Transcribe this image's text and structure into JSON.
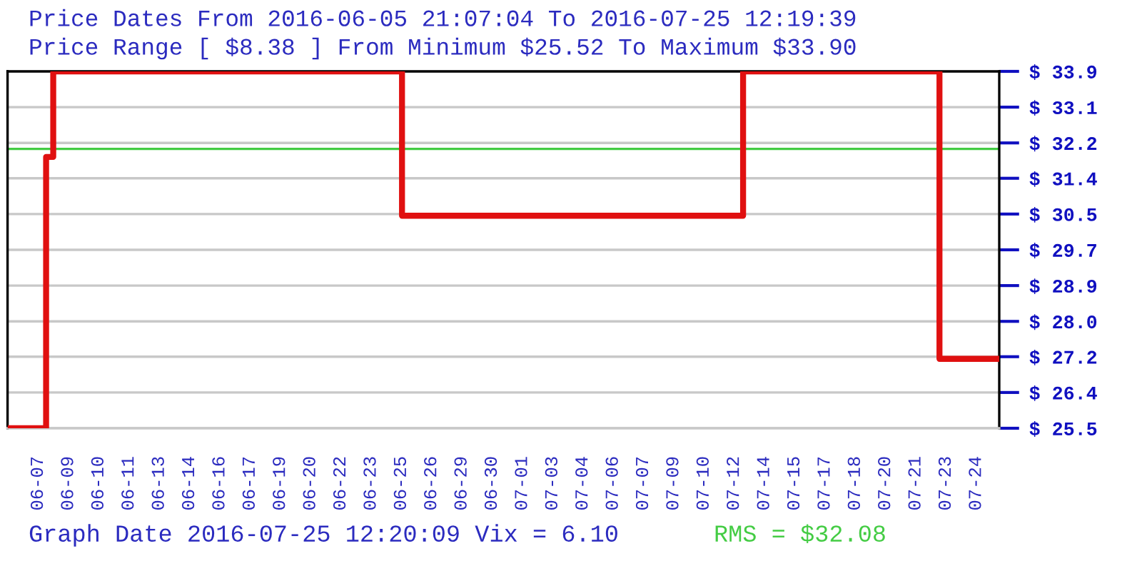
{
  "chart_data": {
    "type": "step",
    "title": "Price Dates From 2016-06-05 21:07:04 To 2016-07-25 12:19:39",
    "subtitle": "Price Range [ $8.38 ] From Minimum $25.52 To Maximum $33.90",
    "annotations": [
      "Graph Date 2016-07-25 12:20:09 Vix = 6.10"
    ],
    "x": [
      "2016-06-05T21:07",
      "2016-06-07T19:24",
      "2016-06-08T03:58",
      "2016-06-25T14:55",
      "2016-07-12T16:37",
      "2016-07-22T12:31",
      "2016-07-25T12:19"
    ],
    "series": [
      {
        "color": "#e01010",
        "values": [
          25.52,
          31.89,
          33.9,
          30.51,
          33.9,
          27.15,
          27.15
        ]
      }
    ],
    "xlim": [
      "2016-06-05T21:07",
      "2016-07-25T12:19"
    ],
    "xticks": [
      {
        "value": "2016-06-07T09:49",
        "label": "06-07"
      },
      {
        "value": "2016-06-08T22:10",
        "label": "06-09"
      },
      {
        "value": "2016-06-10T10:31",
        "label": "06-10"
      },
      {
        "value": "2016-06-11T22:52",
        "label": "06-11"
      },
      {
        "value": "2016-06-13T11:13",
        "label": "06-13"
      },
      {
        "value": "2016-06-14T23:34",
        "label": "06-14"
      },
      {
        "value": "2016-06-16T11:55",
        "label": "06-16"
      },
      {
        "value": "2016-06-18T00:16",
        "label": "06-17"
      },
      {
        "value": "2016-06-19T12:37",
        "label": "06-19"
      },
      {
        "value": "2016-06-21T00:58",
        "label": "06-20"
      },
      {
        "value": "2016-06-22T13:19",
        "label": "06-22"
      },
      {
        "value": "2016-06-24T01:40",
        "label": "06-23"
      },
      {
        "value": "2016-06-25T14:01",
        "label": "06-25"
      },
      {
        "value": "2016-06-27T02:22",
        "label": "06-26"
      },
      {
        "value": "2016-06-28T14:43",
        "label": "06-29"
      },
      {
        "value": "2016-06-30T03:04",
        "label": "06-30"
      },
      {
        "value": "2016-07-01T15:25",
        "label": "07-01"
      },
      {
        "value": "2016-07-03T03:46",
        "label": "07-03"
      },
      {
        "value": "2016-07-04T16:07",
        "label": "07-04"
      },
      {
        "value": "2016-07-06T04:28",
        "label": "07-06"
      },
      {
        "value": "2016-07-07T16:49",
        "label": "07-07"
      },
      {
        "value": "2016-07-09T05:10",
        "label": "07-09"
      },
      {
        "value": "2016-07-10T17:31",
        "label": "07-10"
      },
      {
        "value": "2016-07-12T05:52",
        "label": "07-12"
      },
      {
        "value": "2016-07-13T18:13",
        "label": "07-14"
      },
      {
        "value": "2016-07-15T06:34",
        "label": "07-15"
      },
      {
        "value": "2016-07-16T18:55",
        "label": "07-17"
      },
      {
        "value": "2016-07-18T07:16",
        "label": "07-18"
      },
      {
        "value": "2016-07-19T19:37",
        "label": "07-20"
      },
      {
        "value": "2016-07-21T07:58",
        "label": "07-21"
      },
      {
        "value": "2016-07-22T20:19",
        "label": "07-23"
      },
      {
        "value": "2016-07-24T08:40",
        "label": "07-24"
      }
    ],
    "ylim": [
      25.52,
      33.9
    ],
    "yticks": [
      {
        "value": 25.52,
        "label": "$ 25.5"
      },
      {
        "value": 26.36,
        "label": "$ 26.4"
      },
      {
        "value": 27.2,
        "label": "$ 27.2"
      },
      {
        "value": 28.03,
        "label": "$ 28.0"
      },
      {
        "value": 28.87,
        "label": "$ 28.9"
      },
      {
        "value": 29.71,
        "label": "$ 29.7"
      },
      {
        "value": 30.55,
        "label": "$ 30.5"
      },
      {
        "value": 31.39,
        "label": "$ 31.4"
      },
      {
        "value": 32.22,
        "label": "$ 32.2"
      },
      {
        "value": 33.06,
        "label": "$ 33.1"
      },
      {
        "value": 33.9,
        "label": "$ 33.9"
      }
    ],
    "ref_lines": [
      {
        "axis": "y",
        "value": 32.08,
        "label": "RMS = $32.08",
        "color": "#44cc44"
      }
    ],
    "grid": "y"
  }
}
